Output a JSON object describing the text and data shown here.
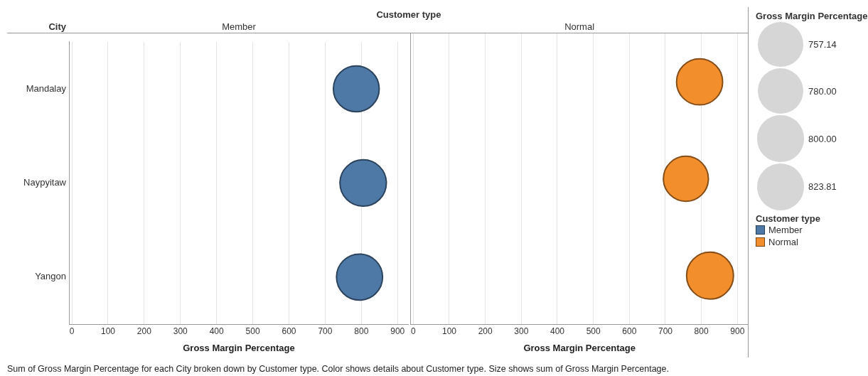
{
  "chart_data": [
    {
      "type": "bubble",
      "orientation": "horizontal",
      "title": "Customer type",
      "subtitle": "Member",
      "ylabel": "City",
      "xlabel": "Gross Margin Percentage",
      "categories": [
        "Mandalay",
        "Naypyitaw",
        "Yangon"
      ],
      "xlim": [
        -8,
        931
      ],
      "xticks": [
        0,
        100,
        200,
        300,
        400,
        500,
        600,
        700,
        800,
        900
      ],
      "grid": "x",
      "legend": "right",
      "legend_title": "Customer type",
      "series": [
        {
          "name": "Member",
          "color": "#4e79a7",
          "values": [
            786,
            805,
            795
          ]
        }
      ],
      "annotations": [
        "Sum of Gross Margin Percentage for each City broken down by Customer type.  Color shows details about Customer type.  Size shows sum of Gross Margin Percentage."
      ]
    },
    {
      "type": "bubble",
      "orientation": "horizontal",
      "subtitle": "Normal",
      "xlabel": "Gross Margin Percentage",
      "categories": [
        null,
        null,
        null
      ],
      "xlim": [
        -8,
        931
      ],
      "xticks": [
        0,
        100,
        200,
        300,
        400,
        500,
        600,
        700,
        800,
        900
      ],
      "grid": "x",
      "tick_labels": "x",
      "legend": "right",
      "legend_title": "Gross Margin Percentage",
      "size_legend": [
        757.14,
        {
          "value": 780,
          "label": "780.00"
        },
        {
          "value": 800,
          "label": "800.00"
        },
        823.81
      ],
      "series": [
        {
          "name": "Normal",
          "color": "#f28e2b",
          "values": [
            795,
            757,
            824
          ],
          "sizes": [
            795.24,
            757.14,
            823.81
          ]
        }
      ]
    }
  ]
}
